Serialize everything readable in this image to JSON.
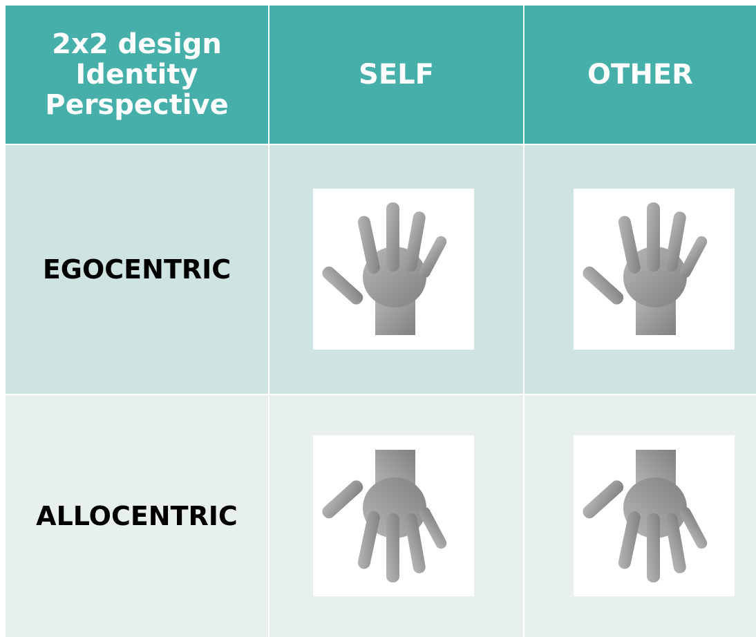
{
  "header": {
    "corner": [
      "2x2 design",
      "Identity",
      "Perspective"
    ],
    "columns": [
      "SELF",
      "OTHER"
    ]
  },
  "rows": [
    {
      "label": "EGOCENTRIC"
    },
    {
      "label": "ALLOCENTRIC"
    }
  ]
}
